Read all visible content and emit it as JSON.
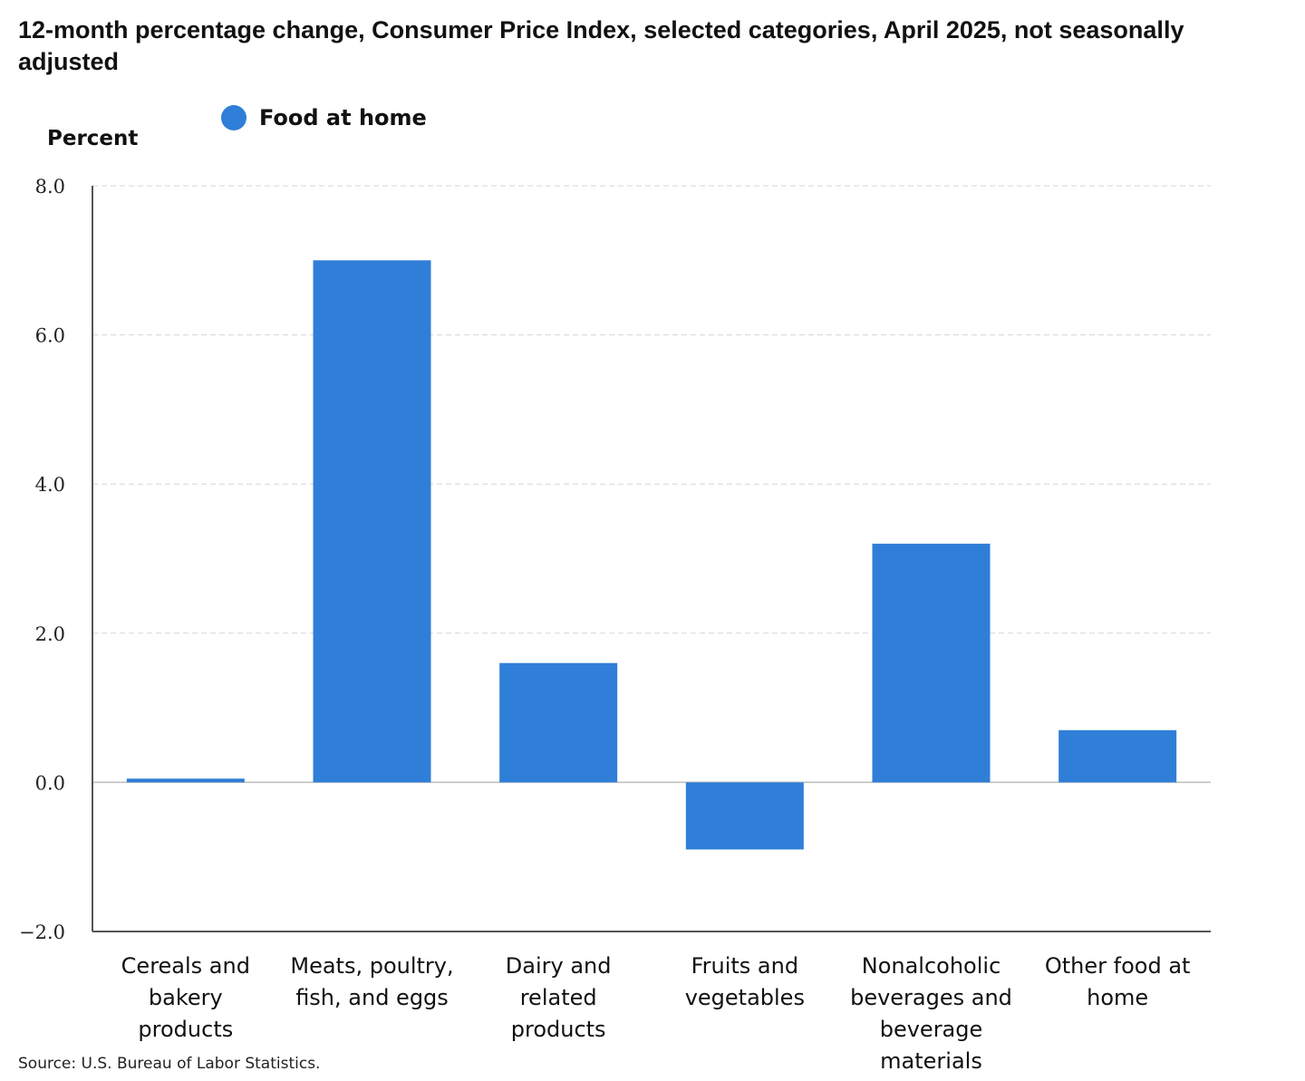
{
  "chart_data": {
    "type": "bar",
    "title": "12-month percentage change, Consumer Price Index, selected categories, April 2025, not seasonally adjusted",
    "ylabel": "Percent",
    "xlabel": "",
    "ylim": [
      -2.0,
      8.0
    ],
    "yticks": [
      {
        "value": 8,
        "label": "8.0"
      },
      {
        "value": 6,
        "label": "6.0"
      },
      {
        "value": 4,
        "label": "4.0"
      },
      {
        "value": 2,
        "label": "2.0"
      },
      {
        "value": 0,
        "label": "0.0"
      },
      {
        "value": -2,
        "label": "−2.0"
      }
    ],
    "categories": [
      [
        "Cereals and",
        "bakery",
        "products"
      ],
      [
        "Meats, poultry,",
        "fish, and eggs"
      ],
      [
        "Dairy and",
        "related",
        "products"
      ],
      [
        "Fruits and",
        "vegetables"
      ],
      [
        "Nonalcoholic",
        "beverages and",
        "beverage",
        "materials"
      ],
      [
        "Other food at",
        "home"
      ]
    ],
    "series": [
      {
        "name": "Food at home",
        "values": [
          0.05,
          7.0,
          1.6,
          -0.9,
          3.2,
          0.7
        ],
        "color": "#2f7ed8"
      }
    ],
    "grid": true,
    "legend_position": "top-left"
  },
  "source": "Source: U.S. Bureau of Labor Statistics."
}
